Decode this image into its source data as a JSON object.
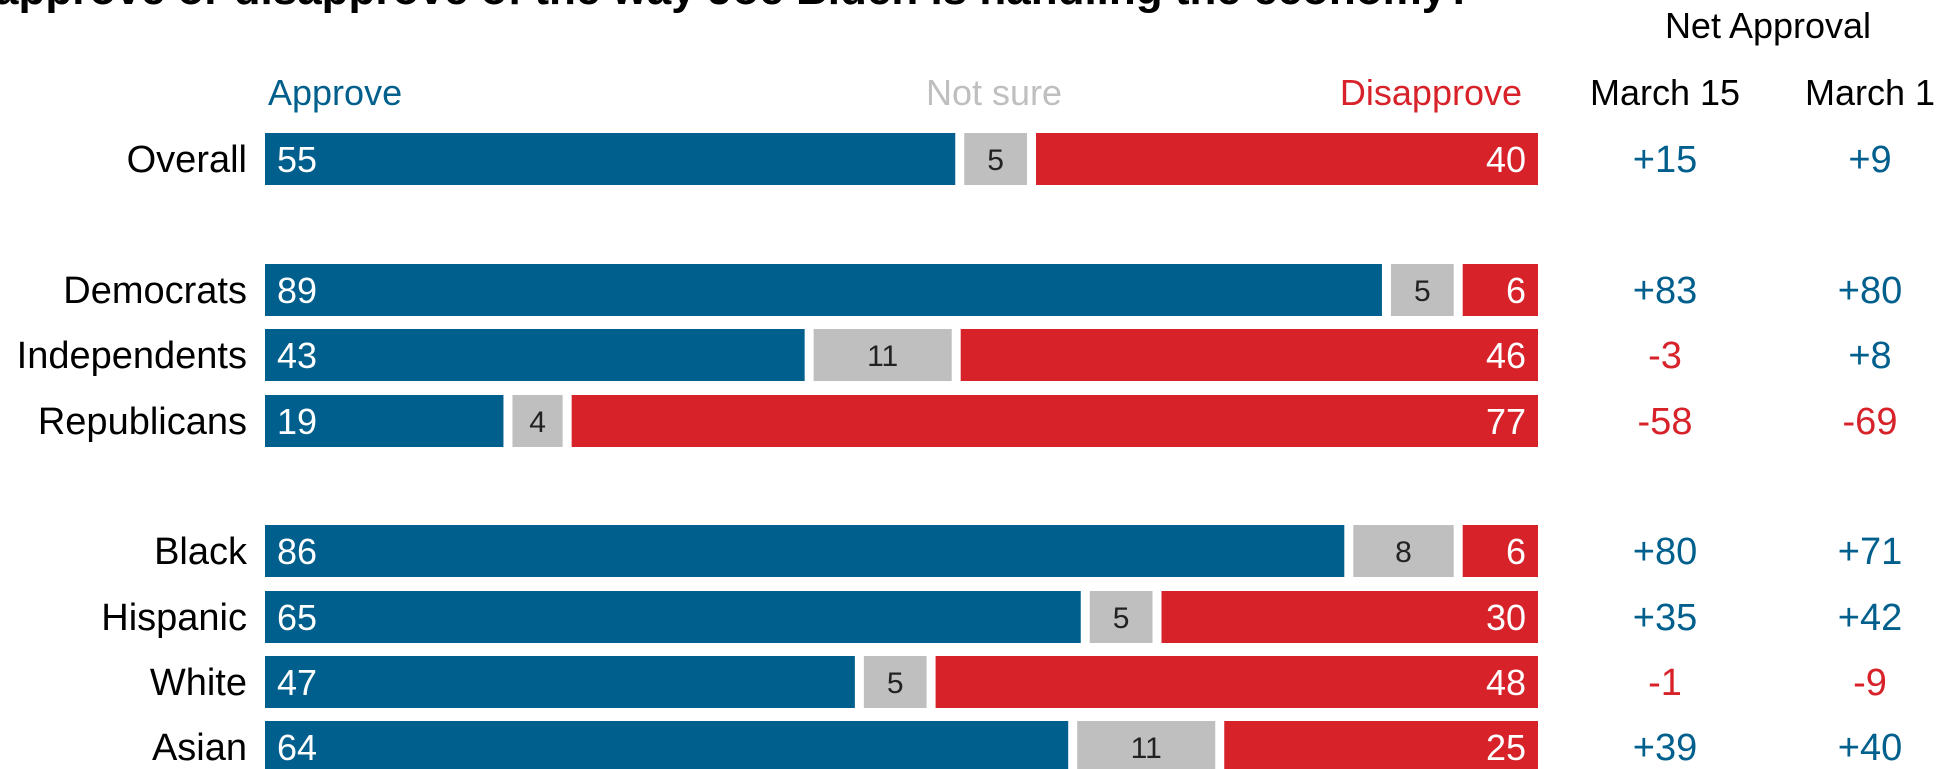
{
  "chart_data": {
    "type": "bar",
    "title": "approve or disapprove of the way Joe Biden is handling the economy?",
    "legend": {
      "approve": "Approve",
      "not_sure": "Not sure",
      "disapprove": "Disapprove"
    },
    "net_header": "Net Approval",
    "net_columns": [
      "March 15",
      "March 1"
    ],
    "categories": [
      "Overall",
      "Democrats",
      "Independents",
      "Republicans",
      "Black",
      "Hispanic",
      "White",
      "Asian"
    ],
    "groups": [
      [
        0
      ],
      [
        1,
        2,
        3
      ],
      [
        4,
        5,
        6,
        7
      ]
    ],
    "series": [
      {
        "name": "Approve",
        "values": [
          55,
          89,
          43,
          19,
          86,
          65,
          47,
          64
        ]
      },
      {
        "name": "Not sure",
        "values": [
          5,
          5,
          11,
          4,
          8,
          5,
          5,
          11
        ]
      },
      {
        "name": "Disapprove",
        "values": [
          40,
          6,
          46,
          77,
          6,
          30,
          48,
          25
        ]
      }
    ],
    "net_approval": [
      {
        "name": "March 15",
        "values": [
          "+15",
          "+83",
          "-3",
          "-58",
          "+80",
          "+35",
          "-1",
          "+39"
        ]
      },
      {
        "name": "March 1",
        "values": [
          "+9",
          "+80",
          "+8",
          "-69",
          "+71",
          "+42",
          "-9",
          "+40"
        ]
      }
    ],
    "colors": {
      "approve": "#005f8c",
      "not_sure": "#bfbfbf",
      "disapprove": "#d7222a",
      "positive_text": "#005f8c",
      "negative_text": "#d7222a"
    }
  }
}
